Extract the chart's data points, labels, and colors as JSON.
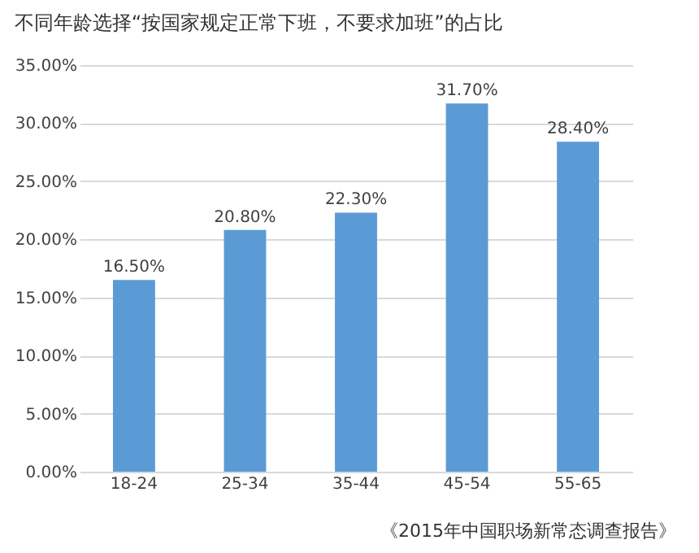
{
  "chart_data": {
    "type": "bar",
    "title": "不同年龄选择“按国家规定正常下班，不要求加班”的占比",
    "categories": [
      "18-24",
      "25-34",
      "35-44",
      "45-54",
      "55-65"
    ],
    "values": [
      16.5,
      20.8,
      22.3,
      31.7,
      28.4
    ],
    "value_labels": [
      "16.50%",
      "20.80%",
      "22.30%",
      "31.70%",
      "28.40%"
    ],
    "color": "#5b9bd5",
    "ylim": [
      0,
      35
    ],
    "yticks": [
      {
        "value": 0,
        "label": "0.00%"
      },
      {
        "value": 5,
        "label": "5.00%"
      },
      {
        "value": 10,
        "label": "10.00%"
      },
      {
        "value": 15,
        "label": "15.00%"
      },
      {
        "value": 20,
        "label": "20.00%"
      },
      {
        "value": 25,
        "label": "25.00%"
      },
      {
        "value": 30,
        "label": "30.00%"
      },
      {
        "value": 35,
        "label": "35.00%"
      }
    ],
    "grid": "y",
    "annotations": [
      "《2015年中国职场新常态调查报告》"
    ]
  }
}
